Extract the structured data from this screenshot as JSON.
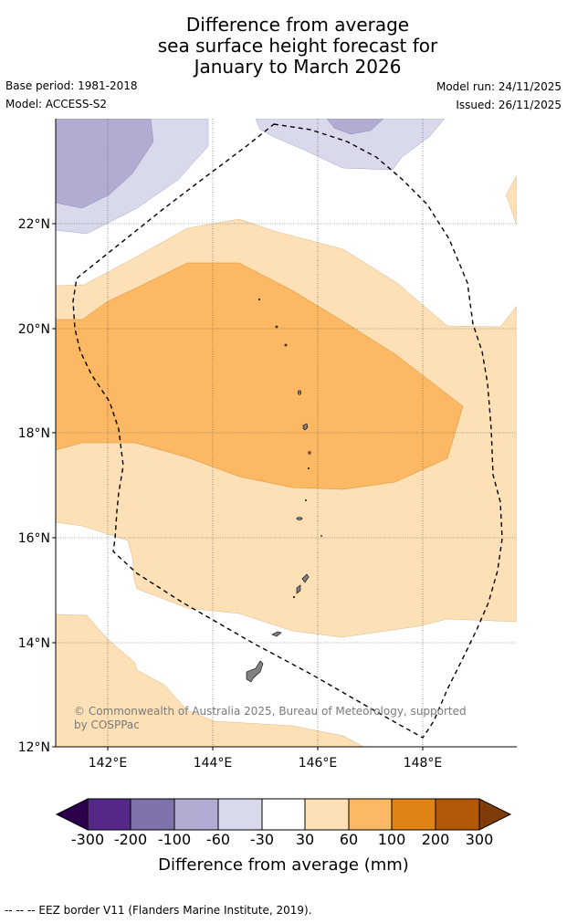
{
  "title": {
    "line1": "Difference from average",
    "line2": "sea surface height forecast for",
    "line3": "January to March 2026"
  },
  "info": {
    "base_period": "Base period: 1981-2018",
    "model": "Model: ACCESS-S2",
    "model_run": "Model run: 24/11/2025",
    "issued": "Issued: 26/11/2025"
  },
  "map": {
    "lat_labels": [
      "22°N",
      "20°N",
      "18°N",
      "16°N",
      "14°N",
      "12°N"
    ],
    "lon_labels": [
      "142°E",
      "144°E",
      "146°E",
      "148°E"
    ],
    "credit": "© Commonwealth of Australia 2025, Bureau of Meteorology, supported by COSPPac"
  },
  "colorbar": {
    "ticks": [
      "-300",
      "-200",
      "-100",
      "-60",
      "-30",
      "30",
      "60",
      "100",
      "200",
      "300"
    ],
    "label": "Difference from average (mm)",
    "colors": {
      "below_min": "#2d004b",
      "c1": "#542788",
      "c2": "#8073ac",
      "c3": "#b2abd2",
      "c4": "#d8daeb",
      "c5": "#ffffff",
      "c6": "#fee0b6",
      "c7": "#fdb863",
      "c8": "#e08214",
      "c9": "#b35806",
      "above_max": "#7f3b08"
    }
  },
  "footnote": "--  --  -- EEZ border V11 (Flanders Marine Institute, 2019)."
}
